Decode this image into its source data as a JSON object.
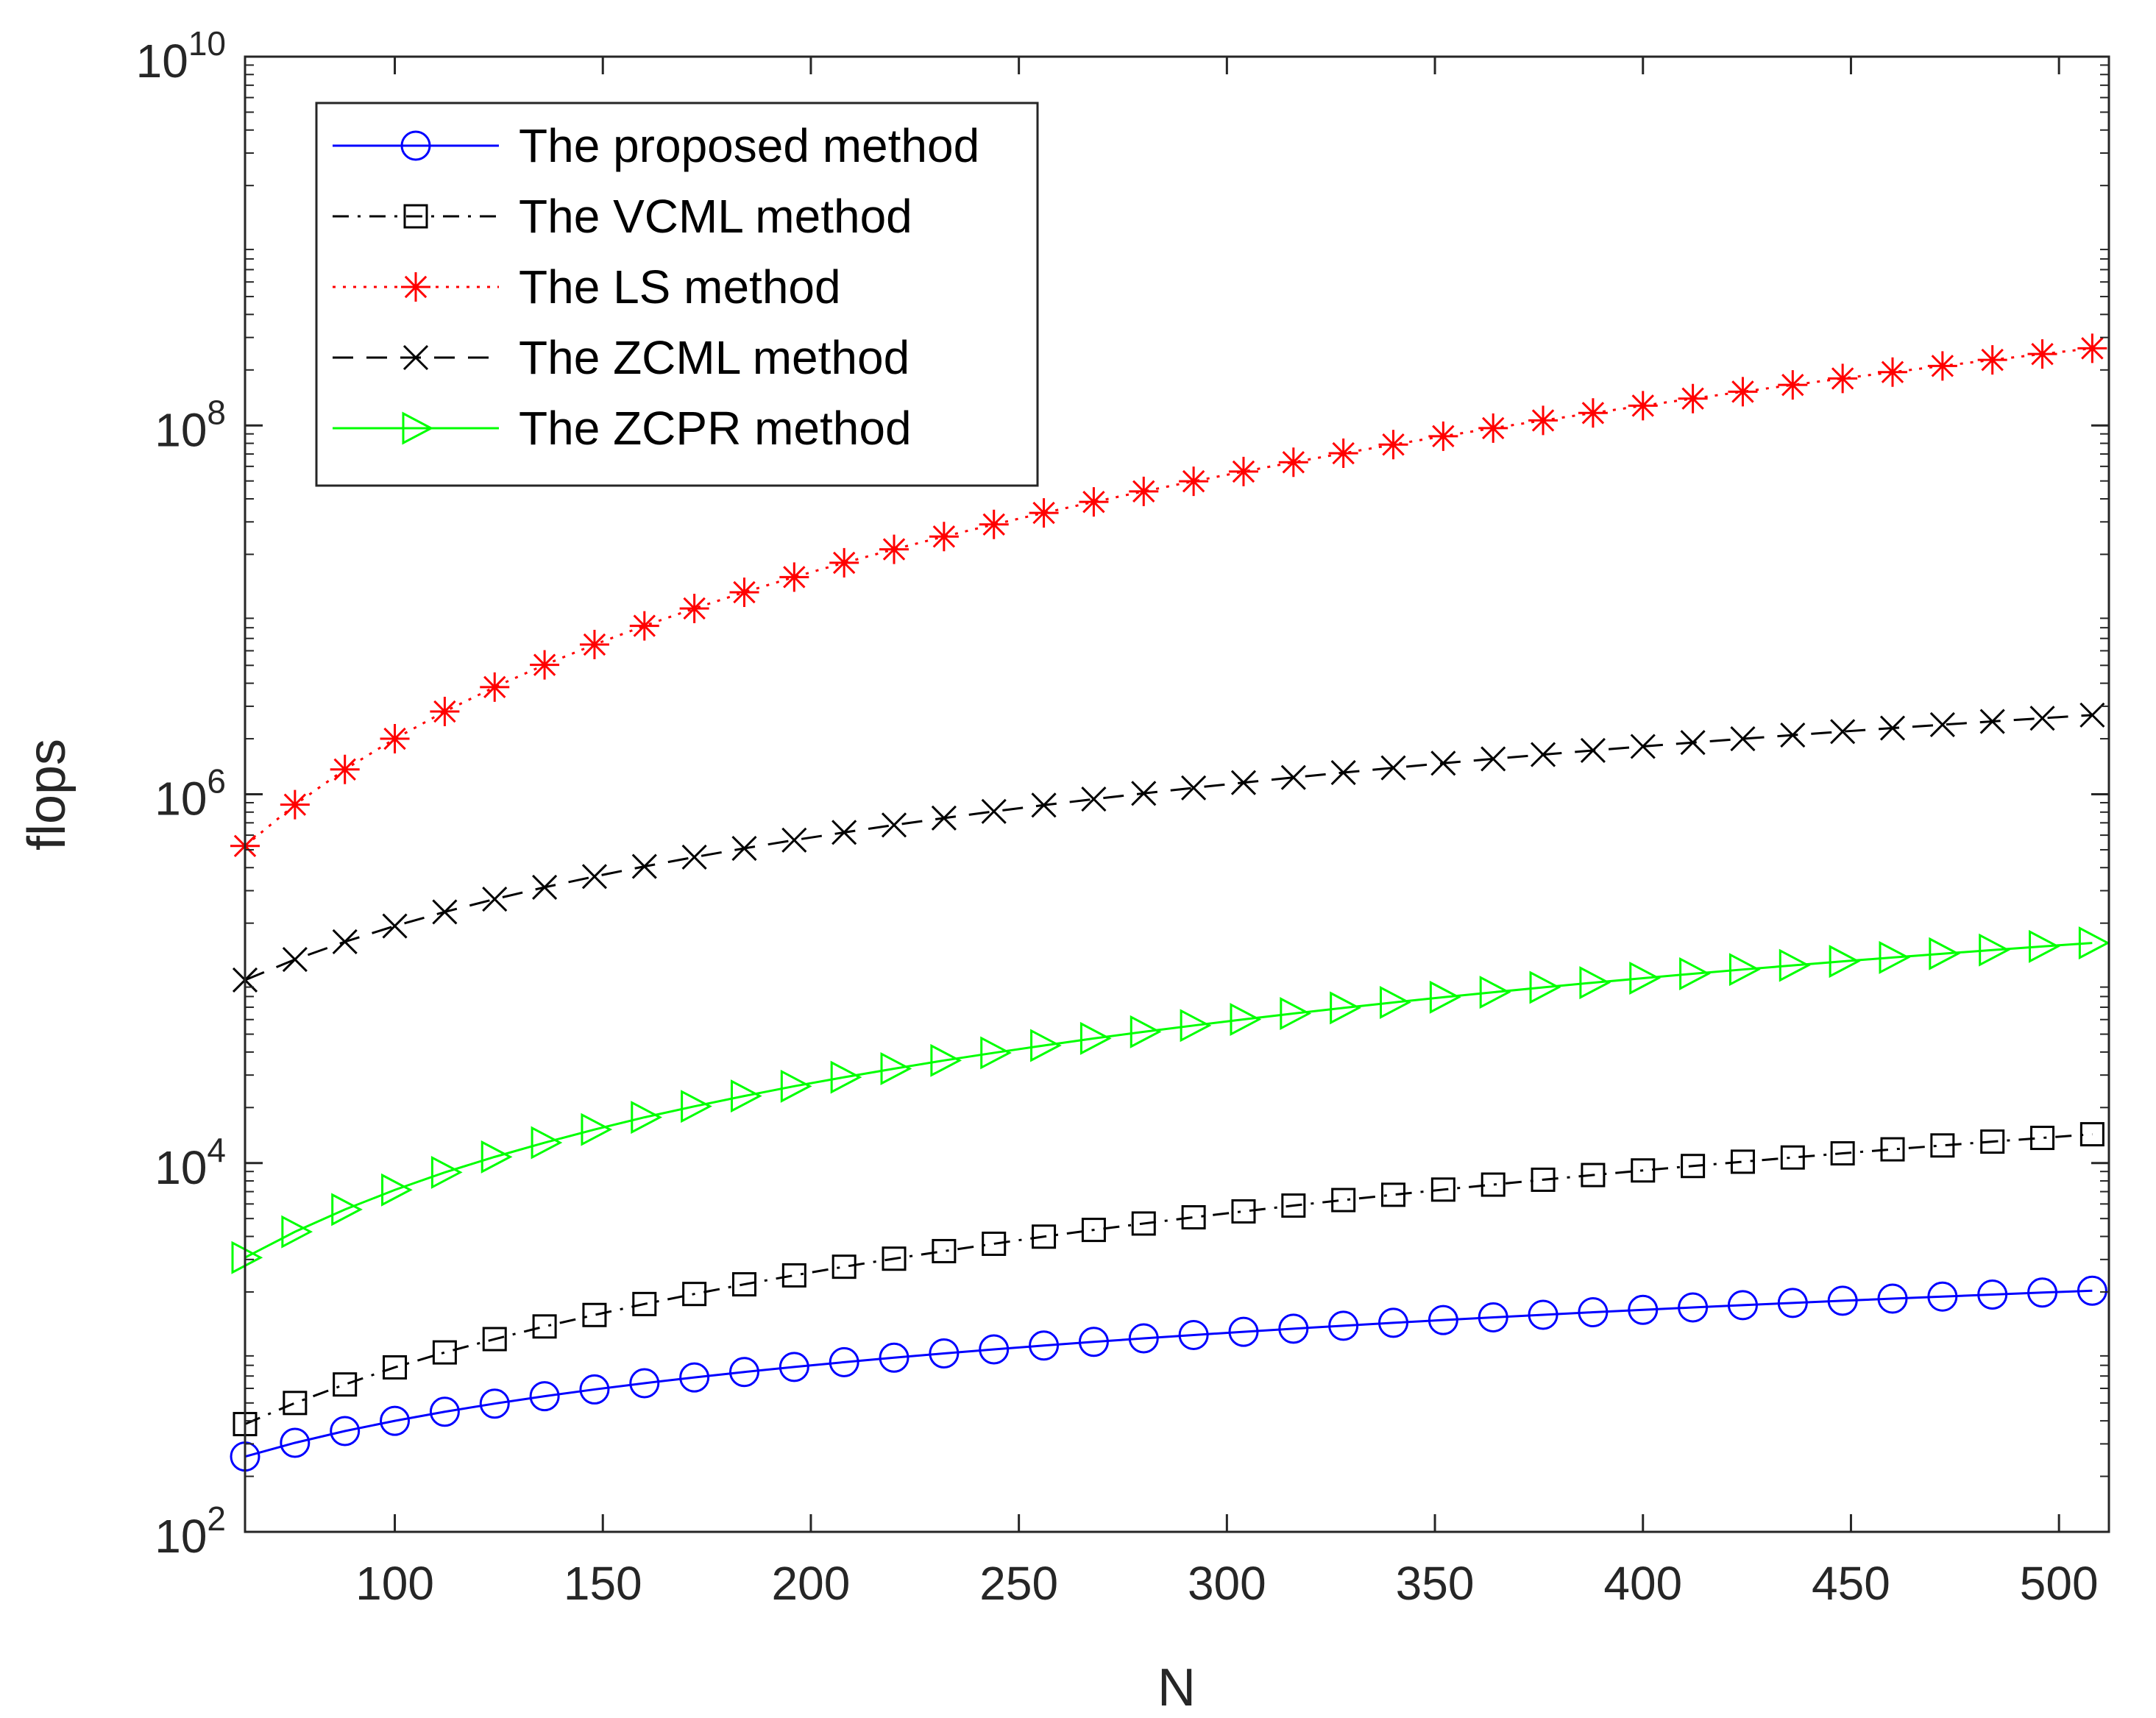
{
  "chart_data": {
    "type": "line",
    "title": "",
    "xlabel": "N",
    "ylabel": "flops",
    "xlim": [
      64,
      512
    ],
    "ylim": [
      100,
      10000000000
    ],
    "yscale": "log",
    "grid": false,
    "legend_position": "top-left",
    "x_ticks": [
      100,
      150,
      200,
      250,
      300,
      350,
      400,
      450,
      500
    ],
    "x_tick_labels": [
      "100",
      "150",
      "200",
      "250",
      "300",
      "350",
      "400",
      "450",
      "500"
    ],
    "y_ticks": [
      100,
      10000,
      1000000,
      100000000,
      10000000000
    ],
    "y_tick_labels": [
      {
        "base": "10",
        "exp": "2"
      },
      {
        "base": "10",
        "exp": "4"
      },
      {
        "base": "10",
        "exp": "6"
      },
      {
        "base": "10",
        "exp": "8"
      },
      {
        "base": "10",
        "exp": "10"
      }
    ],
    "x": [
      64,
      76,
      88,
      100,
      112,
      124,
      136,
      148,
      160,
      172,
      184,
      196,
      208,
      220,
      232,
      244,
      256,
      268,
      280,
      292,
      304,
      316,
      328,
      340,
      352,
      364,
      376,
      388,
      400,
      412,
      424,
      436,
      448,
      460,
      472,
      484,
      496,
      508
    ],
    "series": [
      {
        "name": "The proposed method",
        "color": "#0000ff",
        "line_style": "solid",
        "marker": "circle",
        "values": [
          256,
          304,
          352,
          400,
          448,
          496,
          544,
          592,
          640,
          688,
          736,
          784,
          832,
          880,
          928,
          976,
          1024,
          1072,
          1120,
          1168,
          1216,
          1264,
          1312,
          1360,
          1408,
          1456,
          1504,
          1552,
          1600,
          1648,
          1696,
          1744,
          1792,
          1840,
          1888,
          1936,
          1984,
          2032
        ]
      },
      {
        "name": "The VCML method",
        "color": "#000000",
        "line_style": "dashdot",
        "marker": "square",
        "values": [
          384,
          500,
          630,
          780,
          940,
          1110,
          1300,
          1500,
          1720,
          1950,
          2200,
          2460,
          2740,
          3030,
          3330,
          3650,
          3990,
          4340,
          4700,
          5080,
          5470,
          5880,
          6300,
          6730,
          7180,
          7640,
          8120,
          8610,
          9120,
          9640,
          10170,
          10720,
          11290,
          11870,
          12460,
          13070,
          13690,
          14330
        ]
      },
      {
        "name": "The LS method",
        "color": "#ff0000",
        "line_style": "dotted",
        "marker": "asterisk",
        "values": [
          524288,
          877952,
          1362944,
          2000000,
          2809856,
          3813056,
          5030912,
          6483968,
          8192000,
          10175552,
          12459008,
          15059072,
          17997824,
          21296000,
          24974976,
          29055488,
          33554432,
          38491904,
          43904000,
          49807104,
          56221696,
          63162368,
          70664000,
          78752000,
          87451648,
          96702464,
          106496000,
          116840000,
          128000000,
          139900000,
          152400000,
          165900000,
          179800000,
          194700000,
          210300000,
          226800000,
          244000000,
          262100000
        ]
      },
      {
        "name": "The ZCML method",
        "color": "#000000",
        "line_style": "dashed",
        "marker": "x",
        "values": [
          98304,
          127000,
          158500,
          193000,
          230000,
          270000,
          313000,
          358000,
          406000,
          456000,
          509000,
          564000,
          621000,
          681000,
          743000,
          807000,
          873000,
          941000,
          1011000,
          1083000,
          1157000,
          1233000,
          1311000,
          1391000,
          1473000,
          1556000,
          1641000,
          1728000,
          1817000,
          1907000,
          1999000,
          2093000,
          2188000,
          2285000,
          2383000,
          2483000,
          2585000,
          2688000
        ]
      },
      {
        "name": "The ZCPR method",
        "color": "#00ff00",
        "line_style": "solid",
        "marker": "triangle-right",
        "values": [
          3072,
          4240,
          5600,
          7150,
          8900,
          10800,
          12900,
          15200,
          17700,
          20300,
          23100,
          26100,
          29200,
          32500,
          36000,
          39600,
          43400,
          47400,
          51500,
          55700,
          60100,
          64700,
          69400,
          74300,
          79300,
          84400,
          89700,
          95100,
          100600,
          106300,
          112100,
          118000,
          124100,
          130200,
          136500,
          143000,
          149500,
          156200
        ]
      }
    ]
  }
}
